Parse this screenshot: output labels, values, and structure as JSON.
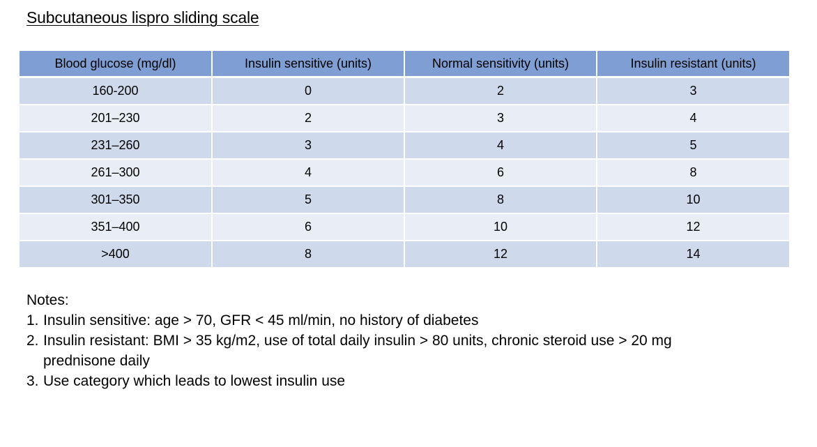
{
  "title": "Subcutaneous lispro sliding scale",
  "table": {
    "headers": [
      "Blood glucose (mg/dl)",
      "Insulin sensitive (units)",
      "Normal sensitivity (units)",
      "Insulin resistant (units)"
    ],
    "rows": [
      [
        "160-200",
        "0",
        "2",
        "3"
      ],
      [
        "201–230",
        "2",
        "3",
        "4"
      ],
      [
        "231–260",
        "3",
        "4",
        "5"
      ],
      [
        "261–300",
        "4",
        "6",
        "8"
      ],
      [
        "301–350",
        "5",
        "8",
        "10"
      ],
      [
        "351–400",
        "6",
        "10",
        "12"
      ],
      [
        ">400",
        "8",
        "12",
        "14"
      ]
    ],
    "colors": {
      "header_bg": "#7f9fd4",
      "row_odd_bg": "#cfd9ec",
      "row_even_bg": "#e8edf6"
    }
  },
  "notes": {
    "heading": "Notes:",
    "items": [
      {
        "number": "1.",
        "text": "Insulin sensitive:  age > 70, GFR < 45 ml/min, no history of diabetes"
      },
      {
        "number": "2.",
        "text": "Insulin resistant:  BMI > 35 kg/m2, use of total daily insulin > 80 units, chronic steroid use > 20 mg prednisone daily"
      },
      {
        "number": "3.",
        "text": "Use category which leads to lowest insulin use"
      }
    ]
  }
}
